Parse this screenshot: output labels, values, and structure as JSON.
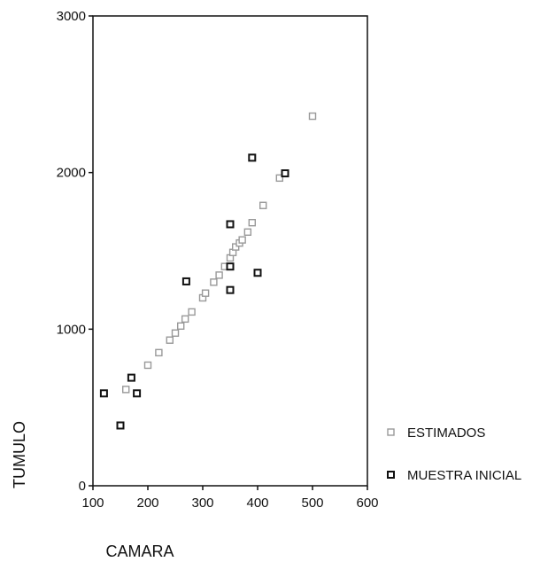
{
  "chart_data": {
    "type": "scatter",
    "title": "",
    "xlabel": "CAMARA",
    "ylabel": "TUMULO",
    "xlim": [
      100,
      600
    ],
    "ylim": [
      0,
      3000
    ],
    "x_ticks": [
      "100",
      "200",
      "300",
      "400",
      "500",
      "600"
    ],
    "y_ticks": [
      "0",
      "1000",
      "2000",
      "3000"
    ],
    "grid": false,
    "legend_position": "right",
    "series": [
      {
        "name": "ESTIMADOS",
        "color": "#999999",
        "marker": "open-square",
        "points": [
          [
            160,
            615
          ],
          [
            200,
            770
          ],
          [
            220,
            850
          ],
          [
            240,
            930
          ],
          [
            250,
            975
          ],
          [
            260,
            1020
          ],
          [
            268,
            1065
          ],
          [
            280,
            1110
          ],
          [
            300,
            1200
          ],
          [
            305,
            1230
          ],
          [
            320,
            1300
          ],
          [
            330,
            1345
          ],
          [
            340,
            1400
          ],
          [
            350,
            1455
          ],
          [
            355,
            1490
          ],
          [
            360,
            1525
          ],
          [
            367,
            1550
          ],
          [
            372,
            1570
          ],
          [
            382,
            1620
          ],
          [
            390,
            1680
          ],
          [
            410,
            1790
          ],
          [
            440,
            1965
          ],
          [
            500,
            2360
          ]
        ]
      },
      {
        "name": "MUESTRA INICIAL",
        "color": "#111111",
        "marker": "open-square",
        "points": [
          [
            120,
            590
          ],
          [
            150,
            385
          ],
          [
            170,
            690
          ],
          [
            180,
            590
          ],
          [
            270,
            1305
          ],
          [
            350,
            1670
          ],
          [
            350,
            1400
          ],
          [
            350,
            1250
          ],
          [
            390,
            2095
          ],
          [
            400,
            1360
          ],
          [
            450,
            1995
          ]
        ]
      }
    ]
  }
}
